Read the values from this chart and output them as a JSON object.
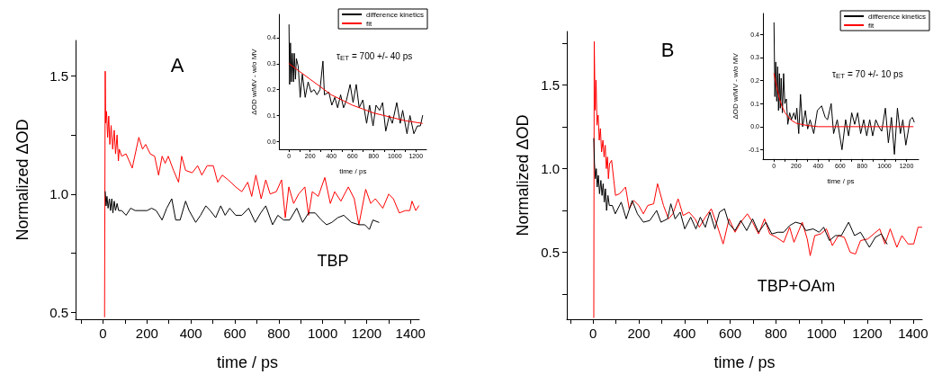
{
  "chart_data": [
    {
      "type": "line",
      "xlabel": "time / ps",
      "ylabel": "Normalized ΔOD",
      "annotations": [
        "A",
        "TBP"
      ],
      "marker": "none",
      "line_style": "solid",
      "grid": false,
      "xlim": [
        -125,
        1440
      ],
      "xticks": [
        {
          "value": -100,
          "label": null
        },
        0,
        {
          "value": 100,
          "label": null
        },
        200,
        {
          "value": 300,
          "label": null
        },
        400,
        {
          "value": 500,
          "label": null
        },
        600,
        {
          "value": 700,
          "label": null
        },
        800,
        {
          "value": 900,
          "label": null
        },
        1000,
        {
          "value": 1100,
          "label": null
        },
        1200,
        {
          "value": 1300,
          "label": null
        },
        1400
      ],
      "ylim": [
        0.47,
        1.65
      ],
      "yticks": [
        0.5,
        {
          "value": 0.75,
          "label": null
        },
        {
          "value": 1,
          "label": "1.0"
        },
        {
          "value": 1.25,
          "label": null
        },
        1.5
      ],
      "series": [
        {
          "color": "#ff0000",
          "x": [
            7,
            10,
            12,
            16,
            21,
            26,
            31,
            37,
            44,
            51,
            57,
            64,
            70,
            74,
            85,
            105,
            133,
            163,
            180,
            194,
            215,
            235,
            253,
            269,
            283,
            297,
            321,
            344,
            358,
            376,
            406,
            431,
            450,
            474,
            502,
            522,
            543,
            570,
            604,
            632,
            659,
            677,
            696,
            720,
            741,
            761,
            789,
            813,
            830,
            846,
            868,
            891,
            919,
            936,
            953,
            980,
            1010,
            1035,
            1055,
            1083,
            1117,
            1144,
            1165,
            1196,
            1219,
            1240,
            1274,
            1301,
            1322,
            1349,
            1377,
            1397,
            1407,
            1424,
            1438
          ],
          "values": [
            0.48,
            1.52,
            1.3,
            1.35,
            1.24,
            1.33,
            1.21,
            1.29,
            1.19,
            1.27,
            1.17,
            1.25,
            1.14,
            1.19,
            1.16,
            1.17,
            1.11,
            1.24,
            1.19,
            1.21,
            1.17,
            1.16,
            1.08,
            1.16,
            1.13,
            1.16,
            1.1,
            1.05,
            1.16,
            1.1,
            1.09,
            1.12,
            1.08,
            1.12,
            1.12,
            1.05,
            1.08,
            1.06,
            1.03,
            1.01,
            1.05,
            0.99,
            1.08,
            0.98,
            1.06,
            1.0,
            1.01,
            1.06,
            0.9,
            1.03,
            0.96,
            1.0,
            1.03,
            0.91,
            1.01,
            0.99,
            1.07,
            0.96,
            1.01,
            0.97,
            1.03,
            0.98,
            0.87,
            1.02,
            0.96,
            0.98,
            0.94,
            1.0,
            0.98,
            0.92,
            0.93,
            0.93,
            0.97,
            0.93,
            0.95
          ]
        },
        {
          "color": "#000000",
          "x": [
            10,
            14,
            18,
            23,
            29,
            34,
            40,
            45,
            51,
            57,
            64,
            71,
            85,
            105,
            126,
            146,
            174,
            201,
            221,
            242,
            269,
            290,
            313,
            331,
            351,
            376,
            392,
            422,
            444,
            468,
            488,
            513,
            536,
            556,
            577,
            604,
            632,
            663,
            693,
            718,
            741,
            772,
            796,
            823,
            850,
            882,
            909,
            936,
            966,
            994,
            1018,
            1042,
            1069,
            1096,
            1131,
            1165,
            1192,
            1213,
            1229,
            1256
          ],
          "values": [
            1.01,
            0.95,
            0.99,
            0.94,
            0.98,
            0.93,
            0.98,
            0.92,
            0.97,
            0.93,
            0.96,
            0.93,
            0.93,
            0.91,
            0.94,
            0.93,
            0.93,
            0.93,
            0.94,
            0.93,
            0.89,
            0.94,
            0.98,
            0.89,
            0.89,
            0.97,
            0.93,
            0.88,
            0.91,
            0.95,
            0.93,
            0.9,
            0.95,
            0.91,
            0.94,
            0.91,
            0.91,
            0.94,
            0.88,
            0.92,
            0.95,
            0.87,
            0.91,
            0.89,
            0.89,
            0.94,
            0.88,
            0.92,
            0.92,
            0.89,
            0.87,
            0.88,
            0.9,
            0.91,
            0.88,
            0.87,
            0.87,
            0.85,
            0.89,
            0.88
          ]
        }
      ]
    },
    {
      "type": "line",
      "xlabel": "time / ps",
      "ylabel": "ΔOD w/MV - w/o MV",
      "annotations": [
        "τ$_{ET}$ = 700 +/- 40 ps"
      ],
      "marker": "none",
      "line_style": "solid",
      "grid": false,
      "legend": "top right",
      "xlim": [
        -90,
        1300
      ],
      "xticks": [
        0,
        {
          "value": 100,
          "label": null
        },
        200,
        {
          "value": 300,
          "label": null
        },
        400,
        {
          "value": 500,
          "label": null
        },
        600,
        {
          "value": 700,
          "label": null
        },
        800,
        {
          "value": 900,
          "label": null
        },
        1000,
        {
          "value": 1100,
          "label": null
        },
        1200
      ],
      "ylim": [
        -0.03,
        0.49
      ],
      "yticks": [
        {
          "value": 0,
          "label": "0.0"
        },
        0.1,
        0.2,
        0.3,
        0.4
      ],
      "series": [
        {
          "name": "difference kinetics",
          "color": "#000000",
          "x": [
            0,
            6,
            14,
            22,
            31,
            42,
            50,
            61,
            70,
            87,
            106,
            126,
            153,
            181,
            209,
            237,
            265,
            293,
            321,
            335,
            377,
            405,
            433,
            460,
            488,
            516,
            544,
            578,
            606,
            636,
            664,
            698,
            734,
            762,
            795,
            823,
            857,
            885,
            915,
            949,
            977,
            1019,
            1052,
            1075,
            1116,
            1144,
            1181,
            1214,
            1242,
            1264
          ],
          "values": [
            0.45,
            0.22,
            0.38,
            0.23,
            0.34,
            0.23,
            0.34,
            0.24,
            0.32,
            0.29,
            0.17,
            0.26,
            0.17,
            0.23,
            0.19,
            0.2,
            0.18,
            0.2,
            0.31,
            0.18,
            0.19,
            0.14,
            0.17,
            0.13,
            0.18,
            0.13,
            0.16,
            0.22,
            0.15,
            0.22,
            0.13,
            0.16,
            0.07,
            0.14,
            0.06,
            0.14,
            0.12,
            0.15,
            0.04,
            0.1,
            0.07,
            0.15,
            0.07,
            0.12,
            0.03,
            0.1,
            0.03,
            0.06,
            0.06,
            0.1
          ]
        },
        {
          "name": "fit",
          "color": "#ff0000",
          "x": [
            0,
            100,
            200,
            300,
            400,
            500,
            600,
            700,
            800,
            900,
            1000,
            1100,
            1260
          ],
          "values": [
            0.3,
            0.27,
            0.24,
            0.21,
            0.18,
            0.16,
            0.14,
            0.125,
            0.11,
            0.1,
            0.09,
            0.08,
            0.07
          ]
        }
      ]
    },
    {
      "type": "line",
      "xlabel": "time / ps",
      "ylabel": "Normalized ΔOD",
      "annotations": [
        "B",
        "TBP+OAm"
      ],
      "marker": "none",
      "line_style": "solid",
      "grid": false,
      "xlim": [
        -115,
        1440
      ],
      "xticks": [
        {
          "value": -100,
          "label": null
        },
        0,
        {
          "value": 100,
          "label": null
        },
        200,
        {
          "value": 300,
          "label": null
        },
        400,
        {
          "value": 500,
          "label": null
        },
        600,
        {
          "value": 700,
          "label": null
        },
        800,
        {
          "value": 900,
          "label": null
        },
        1000,
        {
          "value": 1100,
          "label": null
        },
        1200,
        {
          "value": 1300,
          "label": null
        },
        1400
      ],
      "ylim": [
        0.1,
        1.82
      ],
      "yticks": [
        {
          "value": 0.25,
          "label": null
        },
        0.5,
        {
          "value": 0.75,
          "label": null
        },
        {
          "value": 1,
          "label": "1.0"
        },
        {
          "value": 1.25,
          "label": null
        },
        1.5,
        {
          "value": 1.75,
          "label": null
        }
      ],
      "series": [
        {
          "color": "#ff0000",
          "x": [
            3,
            5,
            9,
            13,
            17,
            22,
            27,
            32,
            37,
            43,
            48,
            53,
            58,
            63,
            67,
            72,
            81,
            98,
            116,
            142,
            158,
            178,
            200,
            220,
            239,
            265,
            282,
            308,
            330,
            349,
            372,
            394,
            420,
            446,
            465,
            491,
            517,
            543,
            569,
            595,
            621,
            646,
            675,
            698,
            724,
            750,
            773,
            802,
            834,
            860,
            879,
            915,
            937,
            950,
            970,
            996,
            1021,
            1047,
            1073,
            1099,
            1125,
            1148,
            1170,
            1202,
            1228,
            1254,
            1277,
            1300,
            1329,
            1351,
            1378,
            1403,
            1422,
            1438
          ],
          "values": [
            0.11,
            1.76,
            1.35,
            1.53,
            1.26,
            1.32,
            1.17,
            1.24,
            1.1,
            1.17,
            1.07,
            1.14,
            1.0,
            1.07,
            0.94,
            1.03,
            1.05,
            0.84,
            0.85,
            0.89,
            0.76,
            0.81,
            0.78,
            0.73,
            0.78,
            0.79,
            0.91,
            0.78,
            0.7,
            0.73,
            0.82,
            0.72,
            0.74,
            0.7,
            0.65,
            0.71,
            0.76,
            0.66,
            0.55,
            0.7,
            0.62,
            0.68,
            0.73,
            0.68,
            0.61,
            0.7,
            0.61,
            0.59,
            0.56,
            0.65,
            0.56,
            0.68,
            0.58,
            0.48,
            0.6,
            0.61,
            0.64,
            0.54,
            0.6,
            0.59,
            0.5,
            0.49,
            0.57,
            0.58,
            0.61,
            0.64,
            0.55,
            0.64,
            0.53,
            0.6,
            0.55,
            0.55,
            0.65,
            0.65
          ]
        },
        {
          "color": "#000000",
          "x": [
            3,
            6,
            10,
            14,
            18,
            23,
            28,
            34,
            39,
            44,
            49,
            54,
            59,
            65,
            71,
            84,
            97,
            123,
            145,
            171,
            194,
            220,
            248,
            278,
            297,
            326,
            340,
            359,
            381,
            401,
            427,
            450,
            469,
            491,
            511,
            533,
            553,
            575,
            595,
            621,
            646,
            672,
            698,
            724,
            756,
            782,
            808,
            834,
            860,
            886,
            912,
            931,
            963,
            989,
            1009,
            1034,
            1060,
            1086,
            1118,
            1144,
            1170,
            1209,
            1235,
            1261,
            1286
          ],
          "values": [
            1.18,
            1.03,
            0.94,
            1.0,
            0.89,
            0.96,
            0.85,
            0.93,
            0.84,
            0.91,
            0.8,
            0.88,
            0.75,
            0.84,
            0.78,
            0.78,
            0.73,
            0.8,
            0.7,
            0.81,
            0.73,
            0.68,
            0.69,
            0.75,
            0.68,
            0.7,
            0.79,
            0.7,
            0.74,
            0.64,
            0.71,
            0.64,
            0.71,
            0.65,
            0.74,
            0.64,
            0.74,
            0.76,
            0.67,
            0.63,
            0.69,
            0.63,
            0.7,
            0.62,
            0.68,
            0.61,
            0.62,
            0.62,
            0.66,
            0.68,
            0.67,
            0.63,
            0.64,
            0.62,
            0.65,
            0.57,
            0.6,
            0.6,
            0.68,
            0.6,
            0.62,
            0.53,
            0.59,
            0.61,
            0.55
          ]
        }
      ]
    },
    {
      "type": "line",
      "xlabel": "time / ps",
      "ylabel": "ΔOD w/MV - w/o MV",
      "annotations": [
        "τ$_{ET}$ = 70 +/- 10 ps"
      ],
      "marker": "none",
      "line_style": "solid",
      "grid": false,
      "legend": "top right",
      "xlim": [
        -100,
        1310
      ],
      "xticks": [
        0,
        {
          "value": 100,
          "label": null
        },
        200,
        {
          "value": 300,
          "label": null
        },
        400,
        {
          "value": 500,
          "label": null
        },
        600,
        {
          "value": 700,
          "label": null
        },
        800,
        {
          "value": 900,
          "label": null
        },
        1000,
        {
          "value": 1100,
          "label": null
        },
        1200
      ],
      "ylim": [
        -0.14,
        0.49
      ],
      "yticks": [
        -0.1,
        {
          "value": 0,
          "label": "0.0"
        },
        0.1,
        0.2,
        0.3,
        0.4
      ],
      "series": [
        {
          "name": "difference kinetics",
          "color": "#000000",
          "x": [
            0,
            8,
            16,
            25,
            33,
            41,
            49,
            57,
            65,
            76,
            87,
            98,
            112,
            125,
            142,
            158,
            180,
            196,
            207,
            224,
            240,
            259,
            284,
            305,
            327,
            360,
            393,
            431,
            464,
            485,
            518,
            540,
            573,
            616,
            649,
            676,
            704,
            731,
            758,
            785,
            813,
            840,
            867,
            894,
            922,
            949,
            976,
            1009,
            1036,
            1064,
            1091,
            1118,
            1145,
            1167,
            1194,
            1216,
            1232,
            1254,
            1270
          ],
          "values": [
            0.45,
            0.13,
            0.28,
            0.11,
            0.26,
            0.07,
            0.23,
            0.08,
            0.21,
            0.06,
            0.23,
            0.1,
            0.12,
            0.01,
            0.06,
            0.03,
            0.06,
            0.03,
            0.08,
            -0.03,
            0.14,
            0.0,
            0.07,
            -0.01,
            0.03,
            -0.03,
            0.07,
            0.09,
            0.04,
            0.03,
            0.1,
            -0.03,
            0.03,
            -0.1,
            0.03,
            -0.04,
            0.06,
            0.01,
            0.06,
            -0.03,
            0.03,
            -0.04,
            0.03,
            -0.04,
            0.03,
            0.0,
            -0.02,
            0.08,
            -0.07,
            0.04,
            -0.12,
            0.08,
            -0.03,
            0.03,
            -0.08,
            -0.02,
            0.03,
            0.04,
            0.02
          ]
        },
        {
          "name": "fit",
          "color": "#ff0000",
          "x": [
            0,
            25,
            50,
            75,
            100,
            150,
            200,
            300,
            400,
            600,
            800,
            1000,
            1260
          ],
          "values": [
            0.23,
            0.17,
            0.12,
            0.085,
            0.06,
            0.03,
            0.015,
            0.005,
            0,
            0,
            0,
            0,
            0
          ]
        }
      ]
    }
  ]
}
